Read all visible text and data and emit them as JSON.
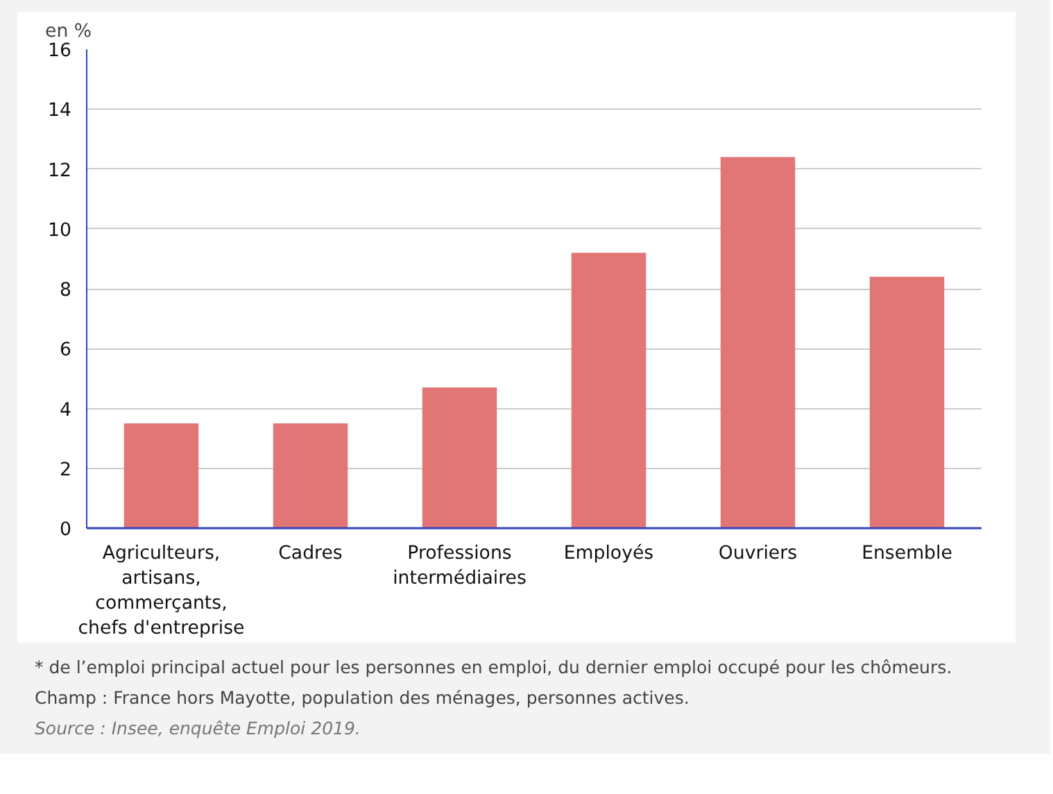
{
  "chart_data": {
    "type": "bar",
    "ylabel": "en %",
    "categories": [
      "Agriculteurs,\nartisans,\ncommerçants,\nchefs d'entreprise",
      "Cadres",
      "Professions\nintermédiaires",
      "Employés",
      "Ouvriers",
      "Ensemble"
    ],
    "values": [
      3.5,
      3.5,
      4.7,
      9.2,
      12.4,
      8.4
    ],
    "color": "#e27575",
    "ylim": [
      0,
      16
    ],
    "yticks": [
      0,
      2,
      4,
      6,
      8,
      10,
      12,
      14,
      16
    ],
    "grid": "y",
    "annotations": [
      "* de l’emploi principal actuel pour les personnes en emploi, du dernier emploi occupé pour les chômeurs.",
      "Champ : France hors Mayotte, population des ménages, personnes actives.",
      "Source : Insee, enquête Emploi 2019."
    ]
  }
}
